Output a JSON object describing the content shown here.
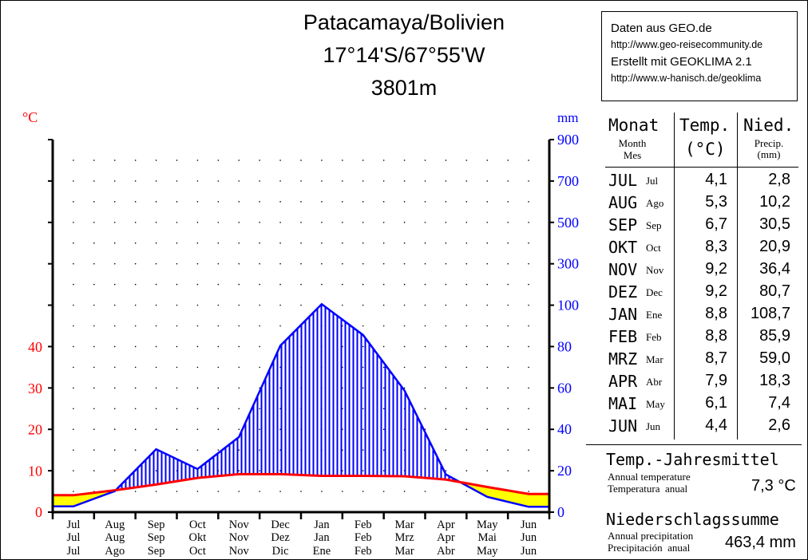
{
  "title": {
    "station": "Patacamaya/Bolivien",
    "coords": "17°14'S/67°55'W",
    "elevation": "3801m"
  },
  "info": {
    "source": "Daten aus GEO.de",
    "source_url": "http://www.geo-reisecommunity.de",
    "created": "Erstellt mit GEOKLIMA 2.1",
    "created_url": "http://www.w-hanisch.de/geoklima"
  },
  "table": {
    "headers": {
      "month": "Monat",
      "month_en": "Month",
      "month_es": "Mes",
      "temp": "Temp.",
      "temp_unit": "(°C)",
      "precip": "Nied.",
      "precip_en": "Precip.",
      "precip_unit": "(mm)"
    },
    "rows": [
      {
        "de": "JUL",
        "es": "Jul",
        "temp": "4,1",
        "precip": "2,8"
      },
      {
        "de": "AUG",
        "es": "Ago",
        "temp": "5,3",
        "precip": "10,2"
      },
      {
        "de": "SEP",
        "es": "Sep",
        "temp": "6,7",
        "precip": "30,5"
      },
      {
        "de": "OKT",
        "es": "Oct",
        "temp": "8,3",
        "precip": "20,9"
      },
      {
        "de": "NOV",
        "es": "Nov",
        "temp": "9,2",
        "precip": "36,4"
      },
      {
        "de": "DEZ",
        "es": "Dec",
        "temp": "9,2",
        "precip": "80,7"
      },
      {
        "de": "JAN",
        "es": "Ene",
        "temp": "8,8",
        "precip": "108,7"
      },
      {
        "de": "FEB",
        "es": "Feb",
        "temp": "8,8",
        "precip": "85,9"
      },
      {
        "de": "MRZ",
        "es": "Mar",
        "temp": "8,7",
        "precip": "59,0"
      },
      {
        "de": "APR",
        "es": "Abr",
        "temp": "7,9",
        "precip": "18,3"
      },
      {
        "de": "MAI",
        "es": "May",
        "temp": "6,1",
        "precip": "7,4"
      },
      {
        "de": "JUN",
        "es": "Jun",
        "temp": "4,4",
        "precip": "2,6"
      }
    ]
  },
  "annual": {
    "temp_heading": "Temp.-Jahresmittel",
    "temp_en": "Annual temperature",
    "temp_es": "Temperatura  anual",
    "temp_value": "7,3 °C",
    "precip_heading": "Niederschlagssumme",
    "precip_en": "Annual precipitation",
    "precip_es": "Precipitación  anual",
    "precip_value": "463,4 mm"
  },
  "chart_data": {
    "type": "climate-diagram",
    "months_en": [
      "Jul",
      "Aug",
      "Sep",
      "Oct",
      "Nov",
      "Dec",
      "Jan",
      "Feb",
      "Mar",
      "Apr",
      "May",
      "Jun"
    ],
    "months_de": [
      "Jul",
      "Aug",
      "Sep",
      "Okt",
      "Nov",
      "Dez",
      "Jan",
      "Feb",
      "Mrz",
      "Apr",
      "Mai",
      "Jun"
    ],
    "months_es": [
      "Jul",
      "Ago",
      "Sep",
      "Oct",
      "Nov",
      "Dic",
      "Ene",
      "Feb",
      "Mar",
      "Abr",
      "May",
      "Jun"
    ],
    "series": [
      {
        "name": "Temp.",
        "unit": "°C",
        "color": "#ff0000",
        "values": [
          4.1,
          5.3,
          6.7,
          8.3,
          9.2,
          9.2,
          8.8,
          8.8,
          8.7,
          7.9,
          6.1,
          4.4
        ]
      },
      {
        "name": "Nied.",
        "unit": "mm",
        "color": "#0000ff",
        "values": [
          2.8,
          10.2,
          30.5,
          20.9,
          36.4,
          80.7,
          108.7,
          85.9,
          59.0,
          18.3,
          7.4,
          2.6
        ]
      }
    ],
    "left_axis": {
      "label": "°C",
      "ticks": [
        "0",
        "10",
        "20",
        "30",
        "40"
      ],
      "color": "#ff0000"
    },
    "right_axis": {
      "label": "mm",
      "ticks": [
        "0",
        "20",
        "40",
        "60",
        "80",
        "100",
        "300",
        "500",
        "700",
        "900"
      ],
      "color": "#0000ff"
    },
    "humid_fill": "#0000ff",
    "arid_fill": "#ffff00",
    "grid": "dotted"
  }
}
